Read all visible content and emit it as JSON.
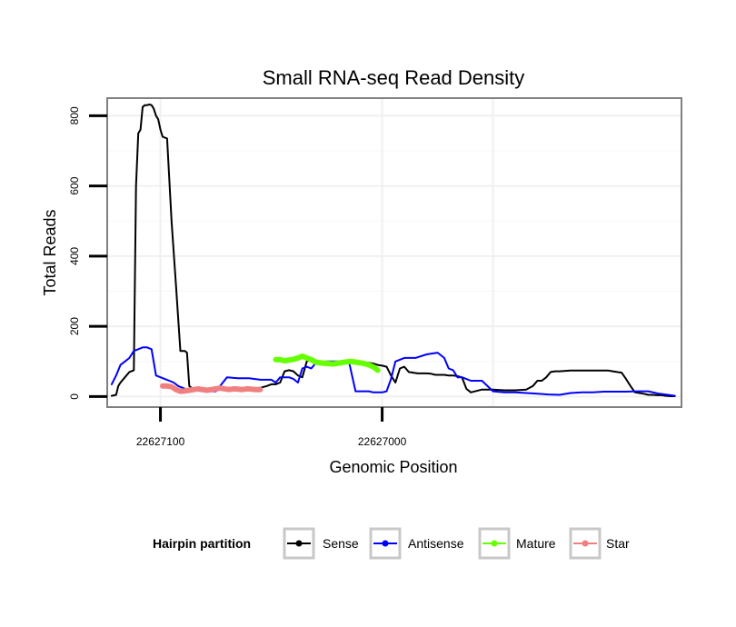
{
  "chart_data": {
    "type": "line",
    "title": "Small RNA-seq Read Density",
    "xlabel": "Genomic Position",
    "ylabel": "Total Reads",
    "x_reversed": true,
    "xlim": [
      22627124,
      22626865
    ],
    "ylim": [
      -30,
      850
    ],
    "x_ticks": [
      22627100,
      22627000
    ],
    "x_tick_labels": [
      "22627100",
      "22627000"
    ],
    "y_ticks": [
      0,
      200,
      400,
      600,
      800
    ],
    "y_tick_labels": [
      "0",
      "200",
      "400",
      "600",
      "800"
    ],
    "grid": true,
    "legend": {
      "title": "Hairpin partition",
      "position": "bottom",
      "entries": [
        {
          "label": "Sense",
          "color": "#000000"
        },
        {
          "label": "Antisense",
          "color": "#0000ff"
        },
        {
          "label": "Mature",
          "color": "#66ff00"
        },
        {
          "label": "Star",
          "color": "#f08080"
        }
      ]
    },
    "series": [
      {
        "name": "Sense",
        "color": "#000000",
        "width": 2,
        "x": [
          22627122,
          22627120,
          22627119,
          22627118,
          22627116,
          22627114,
          22627112,
          22627111,
          22627110,
          22627109,
          22627108,
          22627107,
          22627106,
          22627105,
          22627104,
          22627103,
          22627102,
          22627101,
          22627100,
          22627099,
          22627097,
          22627095,
          22627093,
          22627091,
          22627089,
          22627088,
          22627087,
          22627085,
          22627083,
          22627081,
          22627079,
          22627077,
          22627075,
          22627073,
          22627071,
          22627069,
          22627067,
          22627065,
          22627060,
          22627055,
          22627052,
          22627050,
          22627048,
          22627046,
          22627044,
          22627042,
          22627040,
          22627038,
          22627036,
          22627034,
          22627032,
          22627030,
          22627028,
          22627026,
          22627024,
          22627022,
          22627020,
          22627018,
          22627016,
          22627014,
          22627012,
          22627010,
          22627008,
          22627006,
          22627004,
          22627002,
          22627000,
          22626998,
          22626996,
          22626994,
          22626992,
          22626990,
          22626988,
          22626986,
          22626984,
          22626982,
          22626980,
          22626978,
          22626976,
          22626974,
          22626972,
          22626970,
          22626968,
          22626966,
          22626964,
          22626962,
          22626960,
          22626955,
          22626950,
          22626945,
          22626940,
          22626935,
          22626932,
          22626930,
          22626928,
          22626926,
          22626924,
          22626922,
          22626920,
          22626915,
          22626910,
          22626905,
          22626900,
          22626898,
          22626896,
          22626894,
          22626892,
          22626890,
          22626888,
          22626886,
          22626884,
          22626882,
          22626880,
          22626878,
          22626876,
          22626874,
          22626872,
          22626870,
          22626868
        ],
        "y": [
          2,
          5,
          30,
          40,
          55,
          70,
          75,
          600,
          750,
          760,
          825,
          830,
          830,
          832,
          830,
          820,
          800,
          790,
          760,
          740,
          735,
          500,
          320,
          130,
          130,
          125,
          30,
          20,
          20,
          22,
          22,
          23,
          22,
          23,
          23,
          22,
          22,
          22,
          22,
          25,
          30,
          35,
          35,
          40,
          72,
          75,
          72,
          60,
          55,
          100,
          105,
          100,
          98,
          97,
          96,
          95,
          94,
          93,
          95,
          97,
          99,
          100,
          98,
          96,
          94,
          90,
          88,
          85,
          60,
          40,
          80,
          85,
          70,
          68,
          66,
          66,
          66,
          65,
          62,
          62,
          62,
          60,
          60,
          58,
          55,
          22,
          12,
          20,
          20,
          18,
          18,
          20,
          30,
          45,
          45,
          55,
          70,
          72,
          72,
          74,
          74,
          74,
          74,
          74,
          72,
          70,
          68,
          50,
          30,
          12,
          10,
          8,
          5,
          5,
          4,
          4,
          2,
          1,
          1
        ]
      },
      {
        "name": "Antisense",
        "color": "#0000ff",
        "width": 2,
        "x": [
          22627122,
          22627120,
          22627118,
          22627116,
          22627114,
          22627112,
          22627110,
          22627108,
          22627106,
          22627104,
          22627102,
          22627100,
          22627098,
          22627096,
          22627094,
          22627092,
          22627090,
          22627088,
          22627086,
          22627084,
          22627082,
          22627080,
          22627078,
          22627075,
          22627070,
          22627065,
          22627060,
          22627055,
          22627050,
          22627048,
          22627046,
          22627044,
          22627042,
          22627040,
          22627038,
          22627036,
          22627034,
          22627032,
          22627030,
          22627028,
          22627025,
          22627020,
          22627015,
          22627012,
          22627010,
          22627008,
          22627006,
          22627004,
          22627002,
          22627000,
          22626998,
          22626996,
          22626994,
          22626990,
          22626985,
          22626980,
          22626975,
          22626972,
          22626970,
          22626968,
          22626966,
          22626964,
          22626962,
          22626960,
          22626955,
          22626950,
          22626945,
          22626940,
          22626935,
          22626930,
          22626925,
          22626920,
          22626915,
          22626910,
          22626905,
          22626900,
          22626895,
          22626890,
          22626885,
          22626880,
          22626875,
          22626870,
          22626868
        ],
        "y": [
          35,
          60,
          90,
          100,
          110,
          130,
          135,
          140,
          140,
          135,
          60,
          55,
          50,
          45,
          40,
          30,
          25,
          20,
          18,
          17,
          16,
          16,
          15,
          15,
          55,
          52,
          52,
          48,
          48,
          40,
          55,
          55,
          55,
          50,
          40,
          80,
          85,
          80,
          95,
          98,
          100,
          100,
          100,
          15,
          15,
          15,
          15,
          12,
          12,
          12,
          15,
          50,
          100,
          110,
          110,
          120,
          125,
          110,
          80,
          75,
          55,
          55,
          50,
          45,
          45,
          15,
          12,
          12,
          10,
          8,
          6,
          5,
          10,
          12,
          12,
          14,
          14,
          14,
          15,
          15,
          8,
          4,
          2
        ]
      },
      {
        "name": "Mature",
        "color": "#66ff00",
        "width": 6,
        "x": [
          22627048,
          22627046,
          22627044,
          22627042,
          22627040,
          22627038,
          22627036,
          22627034,
          22627032,
          22627030,
          22627028,
          22627026,
          22627024,
          22627022,
          22627020,
          22627018,
          22627016,
          22627014,
          22627012,
          22627010,
          22627008,
          22627006,
          22627004,
          22627002
        ],
        "y": [
          105,
          105,
          102,
          104,
          106,
          110,
          115,
          110,
          105,
          98,
          96,
          95,
          94,
          93,
          95,
          97,
          99,
          100,
          98,
          96,
          94,
          90,
          85,
          75
        ]
      },
      {
        "name": "Star",
        "color": "#f08080",
        "width": 6,
        "x": [
          22627099,
          22627097,
          22627095,
          22627093,
          22627091,
          22627089,
          22627087,
          22627085,
          22627083,
          22627081,
          22627079,
          22627077,
          22627075,
          22627073,
          22627071,
          22627069,
          22627067,
          22627065,
          22627063,
          22627061,
          22627059,
          22627057,
          22627055
        ],
        "y": [
          30,
          30,
          28,
          20,
          15,
          16,
          18,
          20,
          22,
          20,
          18,
          20,
          22,
          24,
          22,
          20,
          22,
          21,
          20,
          22,
          21,
          20,
          20
        ]
      }
    ]
  }
}
